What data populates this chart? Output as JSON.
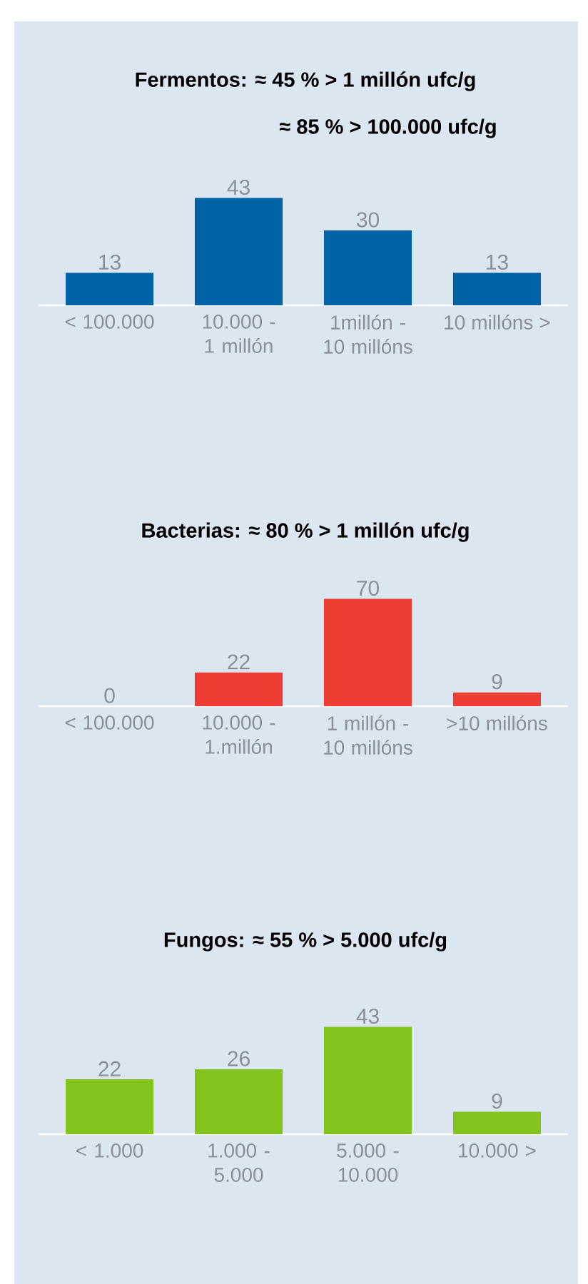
{
  "chart_data": [
    {
      "type": "bar",
      "title": "Fermentos:   ≈ 45 % > 1 millón ufc/g",
      "subtitle": "≈ 85 % > 100.000 ufc/g",
      "categories": [
        "< 100.000",
        "10.000 - 1 millón",
        "1millón - 10 millóns",
        "10 millóns >"
      ],
      "values": [
        13,
        43,
        30,
        13
      ],
      "color": "#0063a6",
      "data_labels": true
    },
    {
      "type": "bar",
      "title": "Bacterias:  ≈ 80 % > 1 millón ufc/g",
      "categories": [
        "< 100.000",
        "10.000 - 1.millón",
        "1 millón - 10 millóns",
        ">10 millóns"
      ],
      "values": [
        0,
        22,
        70,
        9
      ],
      "color": "#ee3e33",
      "data_labels": true
    },
    {
      "type": "bar",
      "title": "Fungos:  ≈ 55 % > 5.000 ufc/g",
      "categories": [
        "< 1.000",
        "1.000 - 5.000",
        "5.000 - 10.000",
        "10.000 >"
      ],
      "values": [
        22,
        26,
        43,
        9
      ],
      "color": "#82c41c",
      "data_labels": true
    }
  ]
}
